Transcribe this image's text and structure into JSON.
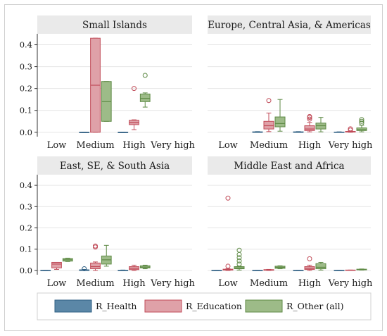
{
  "chart_data": {
    "type": "box",
    "yticks": [
      0.0,
      0.1,
      0.2,
      0.3,
      0.4
    ],
    "ytick_labels": [
      "0.0",
      "0.1",
      "0.2",
      "0.3",
      "0.4"
    ],
    "ylim": [
      -0.02,
      0.45
    ],
    "categories": [
      "Low",
      "Medium",
      "High",
      "Very high"
    ],
    "grid": true,
    "legend_position": "bottom",
    "series": [
      {
        "key": "health",
        "name": "R_Health",
        "fill": "#5b87a7",
        "stroke": "#2f5f83"
      },
      {
        "key": "education",
        "name": "R_Education",
        "fill": "#dfa1a8",
        "stroke": "#c04b58"
      },
      {
        "key": "other",
        "name": "R_Other (all)",
        "fill": "#9dbb88",
        "stroke": "#5e8a45"
      }
    ],
    "panels": [
      {
        "title": "Small Islands",
        "groups": [
          {
            "category": "Low",
            "boxes": []
          },
          {
            "category": "Medium",
            "boxes": [
              {
                "series": "health",
                "min": 0,
                "q1": 0,
                "median": 0,
                "q3": 0,
                "max": 0,
                "outliers": []
              },
              {
                "series": "education",
                "min": 0,
                "q1": 0,
                "median": 0.215,
                "q3": 0.43,
                "max": 0.43,
                "outliers": []
              },
              {
                "series": "other",
                "min": 0.05,
                "q1": 0.05,
                "median": 0.14,
                "q3": 0.232,
                "max": 0.232,
                "outliers": []
              }
            ]
          },
          {
            "category": "High",
            "boxes": [
              {
                "series": "health",
                "min": 0,
                "q1": 0,
                "median": 0,
                "q3": 0,
                "max": 0,
                "outliers": []
              },
              {
                "series": "education",
                "min": 0.012,
                "q1": 0.035,
                "median": 0.045,
                "q3": 0.055,
                "max": 0.057,
                "outliers": [
                  0.2
                ]
              },
              {
                "series": "other",
                "min": 0.115,
                "q1": 0.14,
                "median": 0.155,
                "q3": 0.175,
                "max": 0.18,
                "outliers": [
                  0.26
                ]
              }
            ]
          },
          {
            "category": "Very high",
            "boxes": []
          }
        ]
      },
      {
        "title": "Europe, Central Asia, & Americas",
        "groups": [
          {
            "category": "Low",
            "boxes": []
          },
          {
            "category": "Medium",
            "boxes": [
              {
                "series": "health",
                "min": 0,
                "q1": 0,
                "median": 0,
                "q3": 0.002,
                "max": 0.003,
                "outliers": []
              },
              {
                "series": "education",
                "min": 0.003,
                "q1": 0.015,
                "median": 0.03,
                "q3": 0.05,
                "max": 0.088,
                "outliers": [
                  0.145
                ]
              },
              {
                "series": "other",
                "min": 0.005,
                "q1": 0.025,
                "median": 0.04,
                "q3": 0.07,
                "max": 0.15,
                "outliers": []
              }
            ]
          },
          {
            "category": "High",
            "boxes": [
              {
                "series": "health",
                "min": 0,
                "q1": 0,
                "median": 0,
                "q3": 0.002,
                "max": 0.003,
                "outliers": []
              },
              {
                "series": "education",
                "min": 0.002,
                "q1": 0.008,
                "median": 0.015,
                "q3": 0.03,
                "max": 0.045,
                "outliers": [
                  0.06,
                  0.068,
                  0.072
                ]
              },
              {
                "series": "other",
                "min": 0.002,
                "q1": 0.015,
                "median": 0.03,
                "q3": 0.042,
                "max": 0.068,
                "outliers": []
              }
            ]
          },
          {
            "category": "Very high",
            "boxes": [
              {
                "series": "health",
                "min": 0,
                "q1": 0,
                "median": 0,
                "q3": 0.001,
                "max": 0.002,
                "outliers": []
              },
              {
                "series": "education",
                "min": 0,
                "q1": 0.001,
                "median": 0.002,
                "q3": 0.004,
                "max": 0.005,
                "outliers": [
                  0.01,
                  0.016
                ]
              },
              {
                "series": "other",
                "min": 0.002,
                "q1": 0.008,
                "median": 0.012,
                "q3": 0.02,
                "max": 0.032,
                "outliers": [
                  0.042,
                  0.05,
                  0.058
                ]
              }
            ]
          }
        ]
      },
      {
        "title": "East, SE, & South Asia",
        "groups": [
          {
            "category": "Low",
            "boxes": [
              {
                "series": "health",
                "min": 0,
                "q1": 0,
                "median": 0,
                "q3": 0.001,
                "max": 0.001,
                "outliers": []
              },
              {
                "series": "education",
                "min": 0.005,
                "q1": 0.012,
                "median": 0.03,
                "q3": 0.038,
                "max": 0.038,
                "outliers": []
              },
              {
                "series": "other",
                "min": 0.042,
                "q1": 0.044,
                "median": 0.05,
                "q3": 0.056,
                "max": 0.058,
                "outliers": []
              }
            ]
          },
          {
            "category": "Medium",
            "boxes": [
              {
                "series": "health",
                "min": 0,
                "q1": 0,
                "median": 0,
                "q3": 0.003,
                "max": 0.005,
                "outliers": [
                  0.008
                ]
              },
              {
                "series": "education",
                "min": 0,
                "q1": 0.008,
                "median": 0.018,
                "q3": 0.035,
                "max": 0.04,
                "outliers": [
                  0.11,
                  0.115
                ]
              },
              {
                "series": "other",
                "min": 0.02,
                "q1": 0.03,
                "median": 0.05,
                "q3": 0.068,
                "max": 0.118,
                "outliers": []
              }
            ]
          },
          {
            "category": "High",
            "boxes": [
              {
                "series": "health",
                "min": 0,
                "q1": 0,
                "median": 0,
                "q3": 0.001,
                "max": 0.002,
                "outliers": []
              },
              {
                "series": "education",
                "min": 0,
                "q1": 0.004,
                "median": 0.01,
                "q3": 0.018,
                "max": 0.025,
                "outliers": []
              },
              {
                "series": "other",
                "min": 0.008,
                "q1": 0.012,
                "median": 0.016,
                "q3": 0.022,
                "max": 0.025,
                "outliers": []
              }
            ]
          },
          {
            "category": "Very high",
            "boxes": []
          }
        ]
      },
      {
        "title": "Middle East and Africa",
        "groups": [
          {
            "category": "Low",
            "boxes": [
              {
                "series": "health",
                "min": 0,
                "q1": 0,
                "median": 0,
                "q3": 0.001,
                "max": 0.001,
                "outliers": []
              },
              {
                "series": "education",
                "min": 0,
                "q1": 0.002,
                "median": 0.004,
                "q3": 0.006,
                "max": 0.008,
                "outliers": [
                  0.02,
                  0.34
                ]
              },
              {
                "series": "other",
                "min": 0.002,
                "q1": 0.008,
                "median": 0.012,
                "q3": 0.018,
                "max": 0.02,
                "outliers": [
                  0.03,
                  0.045,
                  0.06,
                  0.075,
                  0.095
                ]
              }
            ]
          },
          {
            "category": "Medium",
            "boxes": [
              {
                "series": "health",
                "min": 0,
                "q1": 0,
                "median": 0,
                "q3": 0.001,
                "max": 0.001,
                "outliers": []
              },
              {
                "series": "education",
                "min": 0,
                "q1": 0.001,
                "median": 0.002,
                "q3": 0.004,
                "max": 0.005,
                "outliers": []
              },
              {
                "series": "other",
                "min": 0.008,
                "q1": 0.01,
                "median": 0.015,
                "q3": 0.02,
                "max": 0.022,
                "outliers": []
              }
            ]
          },
          {
            "category": "High",
            "boxes": [
              {
                "series": "health",
                "min": 0,
                "q1": 0,
                "median": 0,
                "q3": 0.001,
                "max": 0.001,
                "outliers": []
              },
              {
                "series": "education",
                "min": 0,
                "q1": 0.005,
                "median": 0.01,
                "q3": 0.018,
                "max": 0.025,
                "outliers": [
                  0.055
                ]
              },
              {
                "series": "other",
                "min": 0.002,
                "q1": 0.008,
                "median": 0.015,
                "q3": 0.032,
                "max": 0.038,
                "outliers": []
              }
            ]
          },
          {
            "category": "Very high",
            "boxes": [
              {
                "series": "health",
                "min": 0,
                "q1": 0,
                "median": 0,
                "q3": 0.001,
                "max": 0.001,
                "outliers": []
              },
              {
                "series": "education",
                "min": 0,
                "q1": 0.001,
                "median": 0.001,
                "q3": 0.002,
                "max": 0.002,
                "outliers": []
              },
              {
                "series": "other",
                "min": 0.002,
                "q1": 0.003,
                "median": 0.004,
                "q3": 0.006,
                "max": 0.007,
                "outliers": []
              }
            ]
          }
        ]
      }
    ]
  }
}
